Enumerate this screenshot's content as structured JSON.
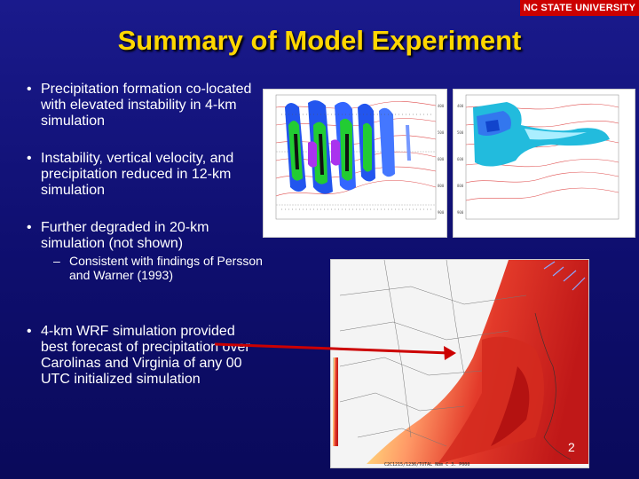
{
  "header": {
    "logo_text": "NC STATE UNIVERSITY"
  },
  "slide": {
    "title": "Summary of Model Experiment",
    "bullets": [
      "Precipitation formation co-located with elevated instability in 4-km simulation",
      "Instability, vertical velocity, and precipitation reduced in 12-km simulation",
      "Further degraded in 20-km simulation (not shown)",
      "4-km WRF simulation provided best forecast of precipitation over Carolinas and Virginia of any 00 UTC initialized simulation"
    ],
    "sub_bullet": "Consistent with findings of Persson and Warner (1993)",
    "slide_number": "2"
  },
  "colors": {
    "title": "#ffd700",
    "background": "#1a1a8c",
    "logo_bg": "#cc0000",
    "arrow": "#cc0000"
  }
}
